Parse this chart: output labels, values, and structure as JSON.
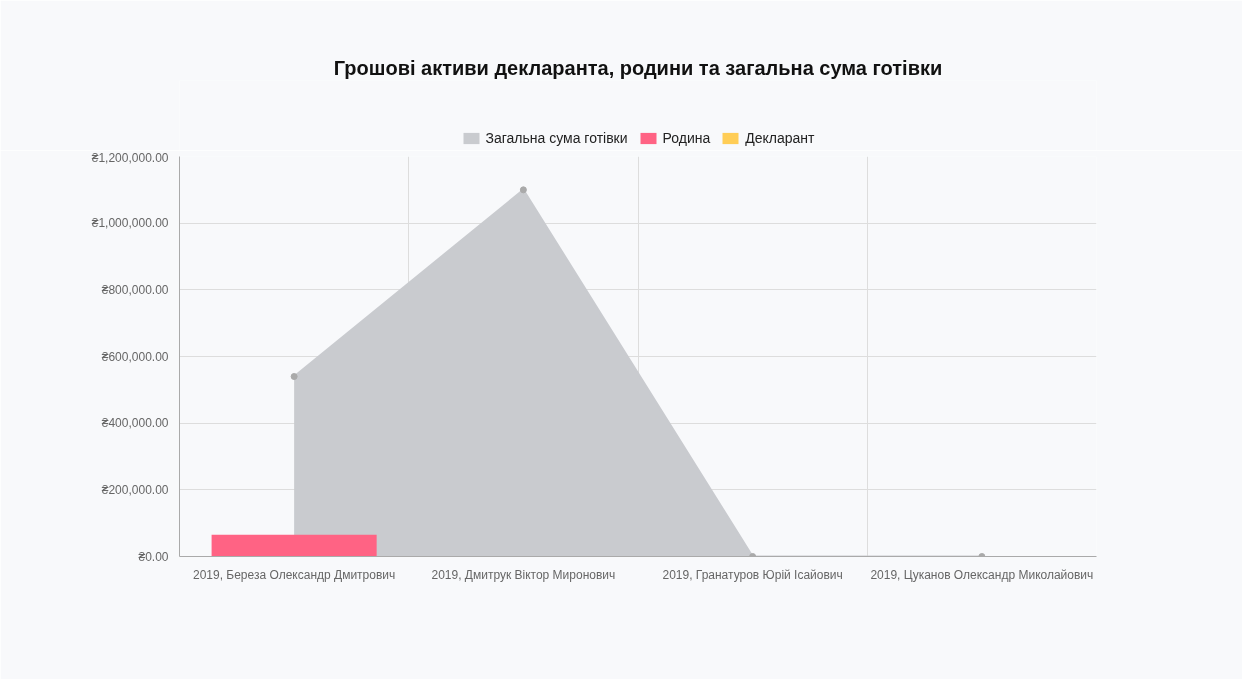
{
  "chart_data": {
    "type": "bar",
    "title": "Грошові активи декларанта, родини та загальна сума готівки",
    "categories": [
      "2019, Береза Олександр Дмитрович",
      "2019, Дмитрук Віктор Миронович",
      "2019, Гранатуров Юрій Ісайович",
      "2019, Цуканов Олександр Миколайович"
    ],
    "series": [
      {
        "name": "Загальна сума готівки",
        "type": "area",
        "color": "#c9cbcf",
        "values": [
          540000,
          1100000,
          0,
          0
        ]
      },
      {
        "name": "Родина",
        "color": "#ff6384",
        "values": [
          65000,
          0,
          0,
          0
        ]
      },
      {
        "name": "Декларант",
        "color": "#ffcd56",
        "values": [
          0,
          0,
          0,
          0
        ]
      }
    ],
    "marker": "circle",
    "grid": true,
    "legend": "top",
    "ylim": [
      0,
      1200000
    ],
    "yticks": [
      {
        "value": 0,
        "label": "₴0.00"
      },
      {
        "value": 200000,
        "label": "₴200,000.00"
      },
      {
        "value": 400000,
        "label": "₴400,000.00"
      },
      {
        "value": 600000,
        "label": "₴600,000.00"
      },
      {
        "value": 800000,
        "label": "₴800,000.00"
      },
      {
        "value": 1000000,
        "label": "₴1,000,000.00"
      },
      {
        "value": 1200000,
        "label": "₴1,200,000.00"
      }
    ]
  }
}
